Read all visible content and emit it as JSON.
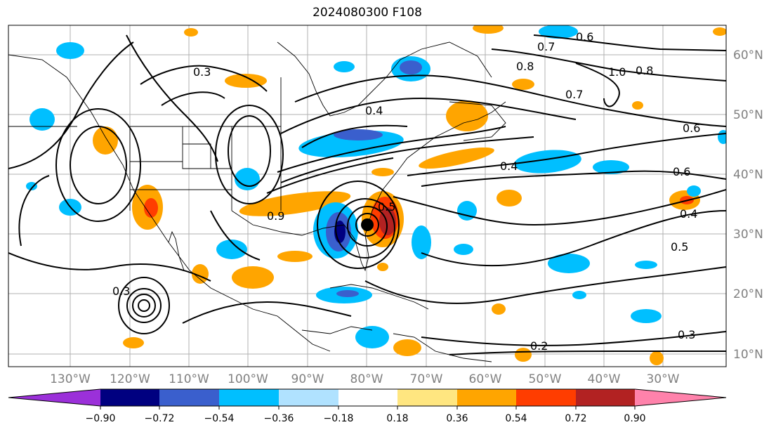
{
  "title": "2024080300 F108",
  "map": {
    "lon_ticks": [
      "130°W",
      "120°W",
      "110°W",
      "100°W",
      "90°W",
      "80°W",
      "70°W",
      "60°W",
      "50°W",
      "40°W",
      "30°W"
    ],
    "lat_ticks": [
      "60°N",
      "50°N",
      "40°N",
      "30°N",
      "20°N",
      "10°N"
    ],
    "contour_labels": [
      "0.3",
      "0.4",
      "0.5",
      "0.6",
      "0.7",
      "0.8",
      "0.9",
      "1.0",
      "0.2",
      "0.3",
      "0.4",
      "0.5",
      "0.6",
      "0.7",
      "0.8",
      "0.6",
      "0.4",
      "0.3"
    ],
    "marker": "storm-center-dot"
  },
  "colorbar": {
    "colors": [
      "#9b30d9",
      "#000080",
      "#3a5fcd",
      "#00bfff",
      "#b0e2ff",
      "#ffffff",
      "#ffe680",
      "#ffa500",
      "#ff3d00",
      "#b22222",
      "#ff82ab"
    ],
    "tick_labels": [
      "−0.90",
      "−0.72",
      "−0.54",
      "−0.36",
      "−0.18",
      "0.18",
      "0.36",
      "0.54",
      "0.72",
      "0.90"
    ]
  }
}
